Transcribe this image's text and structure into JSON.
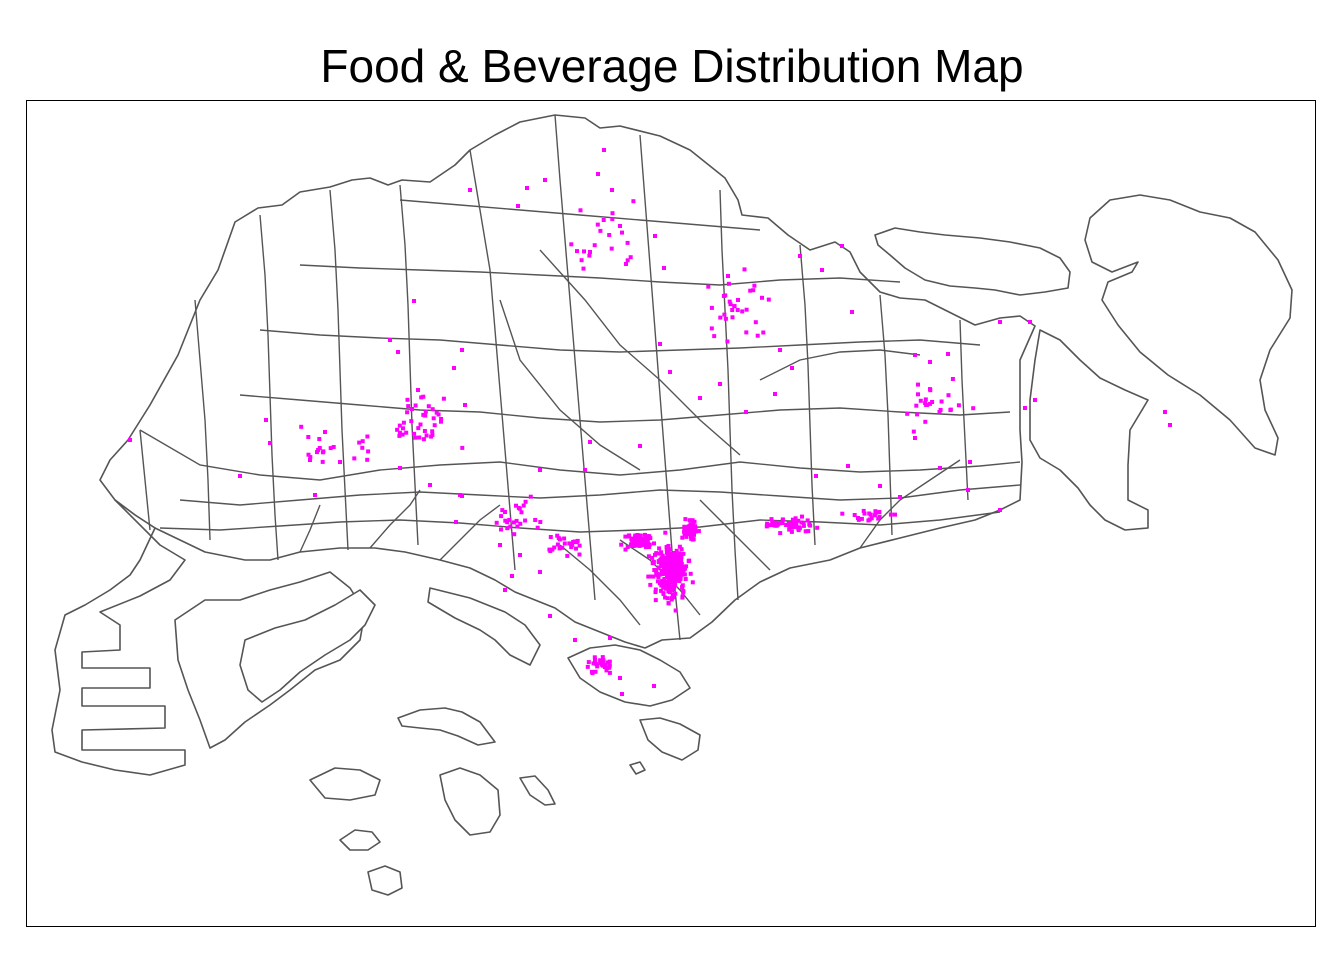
{
  "title": "Food & Beverage Distribution Map",
  "colors": {
    "point": "#ff00ff",
    "boundary": "#555555",
    "frame": "#000000",
    "background": "#ffffff"
  },
  "legend": "none",
  "point_marker": "square"
}
